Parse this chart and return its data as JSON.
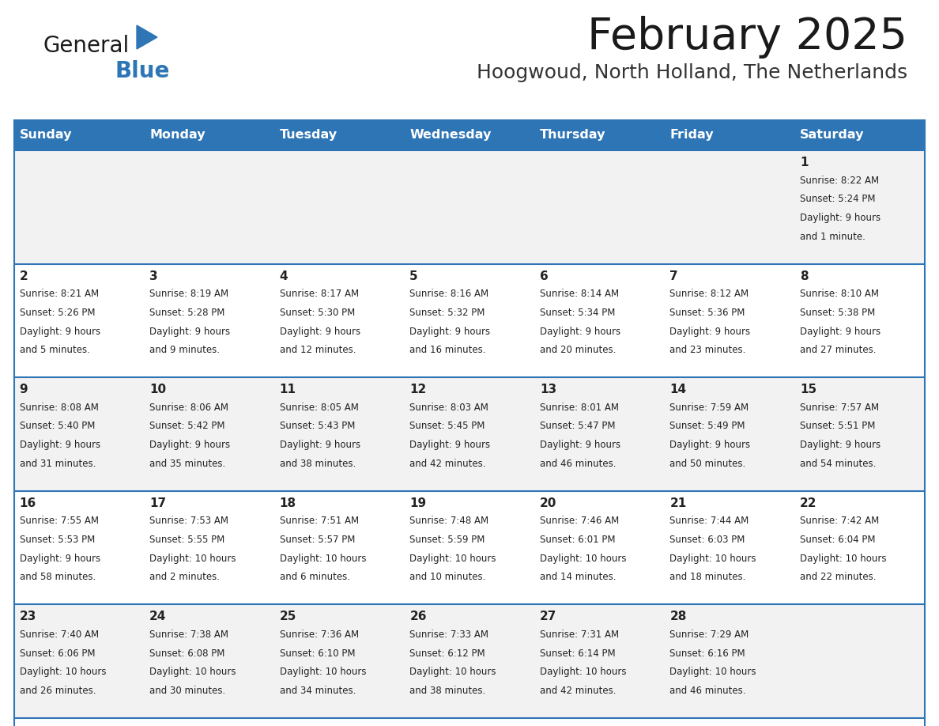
{
  "title": "February 2025",
  "subtitle": "Hoogwoud, North Holland, The Netherlands",
  "days_of_week": [
    "Sunday",
    "Monday",
    "Tuesday",
    "Wednesday",
    "Thursday",
    "Friday",
    "Saturday"
  ],
  "header_bg": "#2E75B6",
  "header_text": "#FFFFFF",
  "row_bg_odd": "#F2F2F2",
  "row_bg_even": "#FFFFFF",
  "cell_text": "#222222",
  "title_color": "#1a1a1a",
  "subtitle_color": "#333333",
  "separator_color": "#2E75B6",
  "logo_general_color": "#1a1a1a",
  "logo_blue_color": "#2E75B6",
  "logo_triangle_color": "#2E75B6",
  "calendar": [
    [
      null,
      null,
      null,
      null,
      null,
      null,
      {
        "day": 1,
        "sunrise": "8:22 AM",
        "sunset": "5:24 PM",
        "daylight": "9 hours and 1 minute."
      }
    ],
    [
      {
        "day": 2,
        "sunrise": "8:21 AM",
        "sunset": "5:26 PM",
        "daylight": "9 hours and 5 minutes."
      },
      {
        "day": 3,
        "sunrise": "8:19 AM",
        "sunset": "5:28 PM",
        "daylight": "9 hours and 9 minutes."
      },
      {
        "day": 4,
        "sunrise": "8:17 AM",
        "sunset": "5:30 PM",
        "daylight": "9 hours and 12 minutes."
      },
      {
        "day": 5,
        "sunrise": "8:16 AM",
        "sunset": "5:32 PM",
        "daylight": "9 hours and 16 minutes."
      },
      {
        "day": 6,
        "sunrise": "8:14 AM",
        "sunset": "5:34 PM",
        "daylight": "9 hours and 20 minutes."
      },
      {
        "day": 7,
        "sunrise": "8:12 AM",
        "sunset": "5:36 PM",
        "daylight": "9 hours and 23 minutes."
      },
      {
        "day": 8,
        "sunrise": "8:10 AM",
        "sunset": "5:38 PM",
        "daylight": "9 hours and 27 minutes."
      }
    ],
    [
      {
        "day": 9,
        "sunrise": "8:08 AM",
        "sunset": "5:40 PM",
        "daylight": "9 hours and 31 minutes."
      },
      {
        "day": 10,
        "sunrise": "8:06 AM",
        "sunset": "5:42 PM",
        "daylight": "9 hours and 35 minutes."
      },
      {
        "day": 11,
        "sunrise": "8:05 AM",
        "sunset": "5:43 PM",
        "daylight": "9 hours and 38 minutes."
      },
      {
        "day": 12,
        "sunrise": "8:03 AM",
        "sunset": "5:45 PM",
        "daylight": "9 hours and 42 minutes."
      },
      {
        "day": 13,
        "sunrise": "8:01 AM",
        "sunset": "5:47 PM",
        "daylight": "9 hours and 46 minutes."
      },
      {
        "day": 14,
        "sunrise": "7:59 AM",
        "sunset": "5:49 PM",
        "daylight": "9 hours and 50 minutes."
      },
      {
        "day": 15,
        "sunrise": "7:57 AM",
        "sunset": "5:51 PM",
        "daylight": "9 hours and 54 minutes."
      }
    ],
    [
      {
        "day": 16,
        "sunrise": "7:55 AM",
        "sunset": "5:53 PM",
        "daylight": "9 hours and 58 minutes."
      },
      {
        "day": 17,
        "sunrise": "7:53 AM",
        "sunset": "5:55 PM",
        "daylight": "10 hours and 2 minutes."
      },
      {
        "day": 18,
        "sunrise": "7:51 AM",
        "sunset": "5:57 PM",
        "daylight": "10 hours and 6 minutes."
      },
      {
        "day": 19,
        "sunrise": "7:48 AM",
        "sunset": "5:59 PM",
        "daylight": "10 hours and 10 minutes."
      },
      {
        "day": 20,
        "sunrise": "7:46 AM",
        "sunset": "6:01 PM",
        "daylight": "10 hours and 14 minutes."
      },
      {
        "day": 21,
        "sunrise": "7:44 AM",
        "sunset": "6:03 PM",
        "daylight": "10 hours and 18 minutes."
      },
      {
        "day": 22,
        "sunrise": "7:42 AM",
        "sunset": "6:04 PM",
        "daylight": "10 hours and 22 minutes."
      }
    ],
    [
      {
        "day": 23,
        "sunrise": "7:40 AM",
        "sunset": "6:06 PM",
        "daylight": "10 hours and 26 minutes."
      },
      {
        "day": 24,
        "sunrise": "7:38 AM",
        "sunset": "6:08 PM",
        "daylight": "10 hours and 30 minutes."
      },
      {
        "day": 25,
        "sunrise": "7:36 AM",
        "sunset": "6:10 PM",
        "daylight": "10 hours and 34 minutes."
      },
      {
        "day": 26,
        "sunrise": "7:33 AM",
        "sunset": "6:12 PM",
        "daylight": "10 hours and 38 minutes."
      },
      {
        "day": 27,
        "sunrise": "7:31 AM",
        "sunset": "6:14 PM",
        "daylight": "10 hours and 42 minutes."
      },
      {
        "day": 28,
        "sunrise": "7:29 AM",
        "sunset": "6:16 PM",
        "daylight": "10 hours and 46 minutes."
      },
      null
    ]
  ]
}
